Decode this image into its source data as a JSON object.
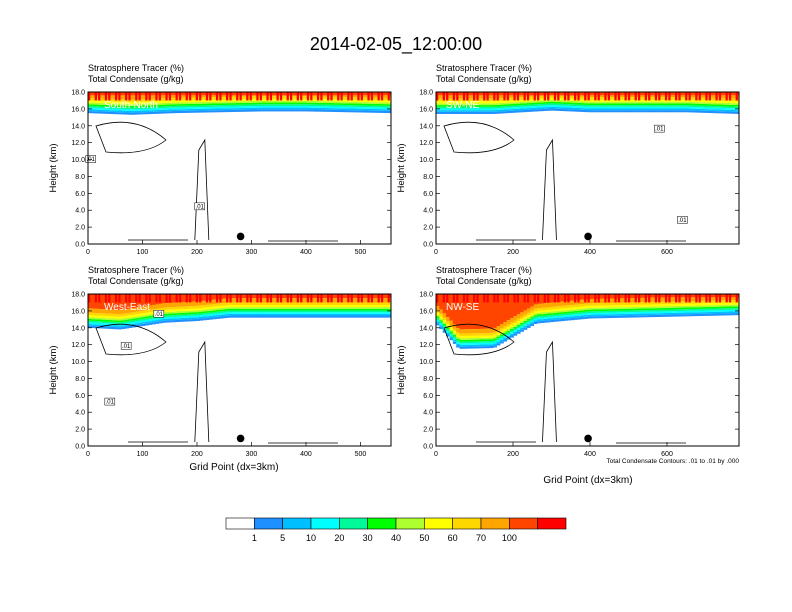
{
  "title": "2014-02-05_12:00:00",
  "subtitle_line1": "Stratosphere Tracer   (%)",
  "subtitle_line2": "Total Condensate   (g/kg)",
  "ylabel": "Height (km)",
  "xlabel": "Grid Point (dx=3km)",
  "contour_note": "Total Condensate Contours: .01 to .01 by .000",
  "contour_label": ".01",
  "colors": {
    "levels": [
      "#ffffff",
      "#1e90ff",
      "#00bfff",
      "#00ffff",
      "#00fa9a",
      "#00ff00",
      "#adff2f",
      "#ffff00",
      "#ffd700",
      "#ffa500",
      "#ff4500",
      "#ff0000"
    ]
  },
  "colorbar": {
    "labels": [
      "1",
      "5",
      "10",
      "20",
      "30",
      "40",
      "50",
      "60",
      "70",
      "100"
    ],
    "colors": [
      "#ffffff",
      "#1e90ff",
      "#00bfff",
      "#00ffff",
      "#00fa9a",
      "#00ff00",
      "#adff2f",
      "#ffff00",
      "#ffd700",
      "#ffa500",
      "#ff4500",
      "#ff0000"
    ]
  },
  "chart_data": [
    {
      "type": "heatmap",
      "panel_label": "South-North",
      "xlim": [
        0,
        556
      ],
      "ylim": [
        0,
        18
      ],
      "xticks": [
        0,
        100,
        200,
        300,
        400,
        500
      ],
      "yticks": [
        "0.0",
        "2.0",
        "4.0",
        "6.0",
        "8.0",
        "10.0",
        "12.0",
        "14.0",
        "16.0",
        "18.0"
      ],
      "marker_x": 280,
      "tracer_front": [
        [
          0,
          15.5
        ],
        [
          80,
          15.3
        ],
        [
          160,
          15.5
        ],
        [
          240,
          15.6
        ],
        [
          320,
          15.7
        ],
        [
          400,
          15.7
        ],
        [
          480,
          15.6
        ],
        [
          556,
          15.5
        ]
      ],
      "contour_labels_at": [
        [
          5,
          10.0
        ],
        [
          205,
          4.4
        ]
      ]
    },
    {
      "type": "heatmap",
      "panel_label": "SW-NE",
      "xlim": [
        0,
        787
      ],
      "ylim": [
        0,
        18
      ],
      "xticks": [
        0,
        200,
        400,
        600
      ],
      "yticks": [
        "0.0",
        "2.0",
        "4.0",
        "6.0",
        "8.0",
        "10.0",
        "12.0",
        "14.0",
        "16.0",
        "18.0"
      ],
      "marker_x": 395,
      "tracer_front": [
        [
          0,
          15.4
        ],
        [
          150,
          15.4
        ],
        [
          300,
          15.8
        ],
        [
          400,
          15.6
        ],
        [
          500,
          15.6
        ],
        [
          650,
          15.6
        ],
        [
          787,
          15.4
        ]
      ],
      "contour_labels_at": [
        [
          580,
          13.6
        ],
        [
          640,
          2.8
        ]
      ]
    },
    {
      "type": "heatmap",
      "panel_label": "West-East",
      "xlim": [
        0,
        556
      ],
      "ylim": [
        0,
        18
      ],
      "xticks": [
        0,
        100,
        200,
        300,
        400,
        500
      ],
      "yticks": [
        "0.0",
        "2.0",
        "4.0",
        "6.0",
        "8.0",
        "10.0",
        "12.0",
        "14.0",
        "16.0",
        "18.0"
      ],
      "marker_x": 280,
      "tracer_front": [
        [
          0,
          14.0
        ],
        [
          60,
          13.8
        ],
        [
          140,
          14.6
        ],
        [
          200,
          14.8
        ],
        [
          260,
          15.2
        ],
        [
          360,
          15.2
        ],
        [
          460,
          15.2
        ],
        [
          556,
          15.2
        ]
      ],
      "contour_labels_at": [
        [
          130,
          15.6
        ],
        [
          70,
          11.8
        ],
        [
          40,
          5.2
        ]
      ]
    },
    {
      "type": "heatmap",
      "panel_label": "NW-SE",
      "xlim": [
        0,
        787
      ],
      "ylim": [
        0,
        18
      ],
      "xticks": [
        0,
        200,
        400,
        600
      ],
      "yticks": [
        "0.0",
        "2.0",
        "4.0",
        "6.0",
        "8.0",
        "10.0",
        "12.0",
        "14.0",
        "16.0",
        "18.0"
      ],
      "marker_x": 395,
      "tracer_front": [
        [
          0,
          14.5
        ],
        [
          60,
          11.5
        ],
        [
          150,
          11.6
        ],
        [
          260,
          14.5
        ],
        [
          400,
          15.1
        ],
        [
          600,
          15.3
        ],
        [
          787,
          15.5
        ]
      ],
      "contour_labels_at": []
    }
  ]
}
